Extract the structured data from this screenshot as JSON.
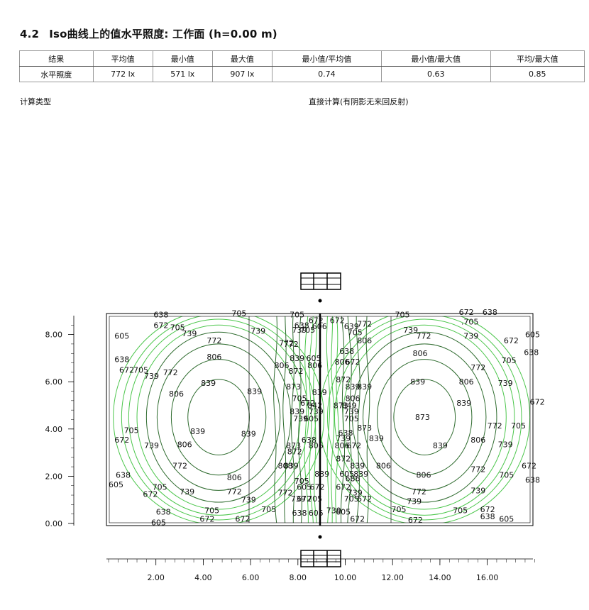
{
  "section": {
    "number": "4.2",
    "title": "Iso曲线上的值水平照度: 工作面 (h=0.00 m)"
  },
  "results_table": {
    "headers": [
      "结果",
      "平均值",
      "最小值",
      "最大值",
      "最小值/平均值",
      "最小值/最大值",
      "平均/最大值"
    ],
    "rows": [
      [
        "水平照度",
        "772 lx",
        "571 lx",
        "907 lx",
        "0.74",
        "0.63",
        "0.85"
      ]
    ]
  },
  "calculation": {
    "label": "计算类型",
    "value": "直接计算(有阴影无来回反射)"
  },
  "chart_data": {
    "type": "contour",
    "x_ticks": [
      "2.00",
      "4.00",
      "6.00",
      "8.00",
      "10.00",
      "12.00",
      "14.00",
      "16.00"
    ],
    "y_ticks": [
      "8.00",
      "6.00",
      "4.00",
      "2.00",
      "0.00"
    ],
    "xlim": [
      0,
      18
    ],
    "ylim": [
      0,
      9
    ],
    "contour_levels": [
      605,
      638,
      672,
      705,
      739,
      772,
      806,
      839,
      873
    ],
    "colors": {
      "outer": "#4cc64c",
      "inner": "#2e6b2e",
      "frame": "#000000"
    },
    "contour_labels": [
      {
        "x": 1.9,
        "y": 8.85,
        "text": "638"
      },
      {
        "x": 5.2,
        "y": 8.9,
        "text": "705"
      },
      {
        "x": 1.9,
        "y": 8.4,
        "text": "672"
      },
      {
        "x": 2.6,
        "y": 8.3,
        "text": "705"
      },
      {
        "x": 3.1,
        "y": 8.05,
        "text": "739"
      },
      {
        "x": 6.0,
        "y": 8.15,
        "text": "739"
      },
      {
        "x": 0.25,
        "y": 7.95,
        "text": "605"
      },
      {
        "x": 4.15,
        "y": 7.75,
        "text": "772"
      },
      {
        "x": 7.2,
        "y": 7.65,
        "text": "772"
      },
      {
        "x": 4.15,
        "y": 7.05,
        "text": "806"
      },
      {
        "x": 0.25,
        "y": 6.95,
        "text": "638"
      },
      {
        "x": 0.45,
        "y": 6.5,
        "text": "672"
      },
      {
        "x": 1.05,
        "y": 6.5,
        "text": "705"
      },
      {
        "x": 1.5,
        "y": 6.25,
        "text": "739"
      },
      {
        "x": 2.3,
        "y": 6.4,
        "text": "772"
      },
      {
        "x": 3.9,
        "y": 5.95,
        "text": "839"
      },
      {
        "x": 5.85,
        "y": 5.6,
        "text": "839"
      },
      {
        "x": 2.55,
        "y": 5.5,
        "text": "806"
      },
      {
        "x": 0.65,
        "y": 3.95,
        "text": "705"
      },
      {
        "x": 0.25,
        "y": 3.55,
        "text": "672"
      },
      {
        "x": 3.45,
        "y": 3.9,
        "text": "839"
      },
      {
        "x": 5.6,
        "y": 3.8,
        "text": "839"
      },
      {
        "x": 1.5,
        "y": 3.3,
        "text": "739"
      },
      {
        "x": 2.9,
        "y": 3.35,
        "text": "806"
      },
      {
        "x": 2.7,
        "y": 2.45,
        "text": "772"
      },
      {
        "x": 0.3,
        "y": 2.05,
        "text": "638"
      },
      {
        "x": 0.0,
        "y": 1.65,
        "text": "605"
      },
      {
        "x": 5.0,
        "y": 1.95,
        "text": "806"
      },
      {
        "x": 1.85,
        "y": 1.55,
        "text": "705"
      },
      {
        "x": 1.45,
        "y": 1.25,
        "text": "672"
      },
      {
        "x": 3.0,
        "y": 1.35,
        "text": "739"
      },
      {
        "x": 5.0,
        "y": 1.35,
        "text": "772"
      },
      {
        "x": 5.6,
        "y": 1.0,
        "text": "739"
      },
      {
        "x": 2.0,
        "y": 0.5,
        "text": "638"
      },
      {
        "x": 4.05,
        "y": 0.55,
        "text": "705"
      },
      {
        "x": 3.85,
        "y": 0.2,
        "text": "672"
      },
      {
        "x": 5.35,
        "y": 0.2,
        "text": "672"
      },
      {
        "x": 1.8,
        "y": 0.05,
        "text": "605"
      },
      {
        "x": 6.45,
        "y": 0.6,
        "text": "705"
      },
      {
        "x": 7.65,
        "y": 8.85,
        "text": "705"
      },
      {
        "x": 8.45,
        "y": 8.6,
        "text": "672"
      },
      {
        "x": 7.85,
        "y": 8.4,
        "text": "638"
      },
      {
        "x": 7.75,
        "y": 8.2,
        "text": "739"
      },
      {
        "x": 8.1,
        "y": 8.2,
        "text": "705"
      },
      {
        "x": 8.6,
        "y": 8.35,
        "text": "606"
      },
      {
        "x": 7.4,
        "y": 7.6,
        "text": "772"
      },
      {
        "x": 7.65,
        "y": 7.0,
        "text": "839"
      },
      {
        "x": 8.35,
        "y": 7.0,
        "text": "605"
      },
      {
        "x": 7.0,
        "y": 6.7,
        "text": "806"
      },
      {
        "x": 8.4,
        "y": 6.7,
        "text": "806"
      },
      {
        "x": 7.6,
        "y": 6.45,
        "text": "872"
      },
      {
        "x": 7.5,
        "y": 5.8,
        "text": "873"
      },
      {
        "x": 8.6,
        "y": 5.55,
        "text": "839"
      },
      {
        "x": 7.75,
        "y": 5.3,
        "text": "705"
      },
      {
        "x": 8.1,
        "y": 5.1,
        "text": "672"
      },
      {
        "x": 8.4,
        "y": 5.0,
        "text": "842"
      },
      {
        "x": 7.65,
        "y": 4.75,
        "text": "839"
      },
      {
        "x": 8.45,
        "y": 4.75,
        "text": "739"
      },
      {
        "x": 7.8,
        "y": 4.45,
        "text": "739"
      },
      {
        "x": 8.25,
        "y": 4.45,
        "text": "605"
      },
      {
        "x": 8.15,
        "y": 3.55,
        "text": "638"
      },
      {
        "x": 7.5,
        "y": 3.3,
        "text": "873"
      },
      {
        "x": 8.45,
        "y": 3.3,
        "text": "806"
      },
      {
        "x": 7.55,
        "y": 3.05,
        "text": "872"
      },
      {
        "x": 8.7,
        "y": 2.1,
        "text": "839"
      },
      {
        "x": 7.15,
        "y": 2.45,
        "text": "808"
      },
      {
        "x": 7.4,
        "y": 2.45,
        "text": "839"
      },
      {
        "x": 7.85,
        "y": 1.8,
        "text": "705"
      },
      {
        "x": 7.95,
        "y": 1.55,
        "text": "605"
      },
      {
        "x": 8.5,
        "y": 1.55,
        "text": "672"
      },
      {
        "x": 7.15,
        "y": 1.3,
        "text": "772"
      },
      {
        "x": 7.95,
        "y": 1.05,
        "text": "672"
      },
      {
        "x": 8.4,
        "y": 1.05,
        "text": "705"
      },
      {
        "x": 7.7,
        "y": 1.05,
        "text": "739"
      },
      {
        "x": 7.75,
        "y": 0.45,
        "text": "638"
      },
      {
        "x": 8.45,
        "y": 0.45,
        "text": "605"
      },
      {
        "x": 9.35,
        "y": 8.6,
        "text": "672"
      },
      {
        "x": 10.5,
        "y": 8.45,
        "text": "772"
      },
      {
        "x": 9.95,
        "y": 8.35,
        "text": "639"
      },
      {
        "x": 10.1,
        "y": 8.1,
        "text": "705"
      },
      {
        "x": 10.5,
        "y": 7.75,
        "text": "806"
      },
      {
        "x": 9.75,
        "y": 7.3,
        "text": "638"
      },
      {
        "x": 9.55,
        "y": 6.85,
        "text": "806"
      },
      {
        "x": 10.0,
        "y": 6.85,
        "text": "672"
      },
      {
        "x": 9.6,
        "y": 6.1,
        "text": "872"
      },
      {
        "x": 10.0,
        "y": 5.8,
        "text": "839"
      },
      {
        "x": 10.5,
        "y": 5.8,
        "text": "839"
      },
      {
        "x": 10.0,
        "y": 5.3,
        "text": "806"
      },
      {
        "x": 9.5,
        "y": 5.0,
        "text": "873"
      },
      {
        "x": 9.85,
        "y": 5.0,
        "text": "849"
      },
      {
        "x": 9.95,
        "y": 4.75,
        "text": "739"
      },
      {
        "x": 9.95,
        "y": 4.45,
        "text": "705"
      },
      {
        "x": 10.5,
        "y": 4.05,
        "text": "873"
      },
      {
        "x": 9.7,
        "y": 3.85,
        "text": "638"
      },
      {
        "x": 9.6,
        "y": 3.6,
        "text": "739"
      },
      {
        "x": 9.55,
        "y": 3.3,
        "text": "806"
      },
      {
        "x": 10.05,
        "y": 3.3,
        "text": "672"
      },
      {
        "x": 9.6,
        "y": 2.75,
        "text": "872"
      },
      {
        "x": 10.2,
        "y": 2.45,
        "text": "839"
      },
      {
        "x": 11.3,
        "y": 2.45,
        "text": "806"
      },
      {
        "x": 10.35,
        "y": 2.1,
        "text": "839"
      },
      {
        "x": 9.75,
        "y": 2.1,
        "text": "605"
      },
      {
        "x": 10.0,
        "y": 1.9,
        "text": "686"
      },
      {
        "x": 9.6,
        "y": 1.55,
        "text": "672"
      },
      {
        "x": 10.1,
        "y": 1.3,
        "text": "739"
      },
      {
        "x": 9.95,
        "y": 1.05,
        "text": "705"
      },
      {
        "x": 10.5,
        "y": 1.05,
        "text": "572"
      },
      {
        "x": 9.2,
        "y": 0.55,
        "text": "739"
      },
      {
        "x": 9.6,
        "y": 0.5,
        "text": "605"
      },
      {
        "x": 10.2,
        "y": 0.2,
        "text": "672"
      },
      {
        "x": 11.95,
        "y": 0.6,
        "text": "705"
      },
      {
        "x": 12.1,
        "y": 8.85,
        "text": "705"
      },
      {
        "x": 12.45,
        "y": 8.2,
        "text": "739"
      },
      {
        "x": 13.0,
        "y": 7.95,
        "text": "772"
      },
      {
        "x": 14.8,
        "y": 8.95,
        "text": "672"
      },
      {
        "x": 15.8,
        "y": 8.95,
        "text": "638"
      },
      {
        "x": 14.9,
        "y": 8.55,
        "text": ".705"
      },
      {
        "x": 17.6,
        "y": 8.0,
        "text": "605"
      },
      {
        "x": 15.0,
        "y": 7.95,
        "text": "739"
      },
      {
        "x": 16.7,
        "y": 7.75,
        "text": "672"
      },
      {
        "x": 12.85,
        "y": 7.2,
        "text": "806"
      },
      {
        "x": 17.55,
        "y": 7.25,
        "text": "638"
      },
      {
        "x": 16.6,
        "y": 6.9,
        "text": "705"
      },
      {
        "x": 15.3,
        "y": 6.6,
        "text": "772"
      },
      {
        "x": 12.75,
        "y": 6.0,
        "text": "839"
      },
      {
        "x": 14.8,
        "y": 6.0,
        "text": "806"
      },
      {
        "x": 16.45,
        "y": 5.95,
        "text": "739"
      },
      {
        "x": 14.7,
        "y": 5.1,
        "text": "839"
      },
      {
        "x": 17.8,
        "y": 5.15,
        "text": "672"
      },
      {
        "x": 12.95,
        "y": 4.5,
        "text": "873"
      },
      {
        "x": 16.0,
        "y": 4.15,
        "text": "772"
      },
      {
        "x": 17.0,
        "y": 4.15,
        "text": "705"
      },
      {
        "x": 11.0,
        "y": 3.6,
        "text": "839"
      },
      {
        "x": 13.7,
        "y": 3.3,
        "text": "839"
      },
      {
        "x": 15.3,
        "y": 3.55,
        "text": "806"
      },
      {
        "x": 16.45,
        "y": 3.35,
        "text": "739"
      },
      {
        "x": 13.0,
        "y": 2.05,
        "text": "806"
      },
      {
        "x": 15.3,
        "y": 2.3,
        "text": "772"
      },
      {
        "x": 17.45,
        "y": 2.45,
        "text": "672"
      },
      {
        "x": 16.5,
        "y": 2.05,
        "text": "705"
      },
      {
        "x": 17.6,
        "y": 1.85,
        "text": "638"
      },
      {
        "x": 12.8,
        "y": 1.35,
        "text": "772"
      },
      {
        "x": 15.3,
        "y": 1.4,
        "text": "739"
      },
      {
        "x": 12.6,
        "y": 0.95,
        "text": "739"
      },
      {
        "x": 14.55,
        "y": 0.55,
        "text": "705"
      },
      {
        "x": 15.7,
        "y": 0.6,
        "text": "672"
      },
      {
        "x": 12.65,
        "y": 0.15,
        "text": "672"
      },
      {
        "x": 15.7,
        "y": 0.3,
        "text": "638"
      },
      {
        "x": 16.5,
        "y": 0.2,
        "text": "605"
      }
    ]
  }
}
